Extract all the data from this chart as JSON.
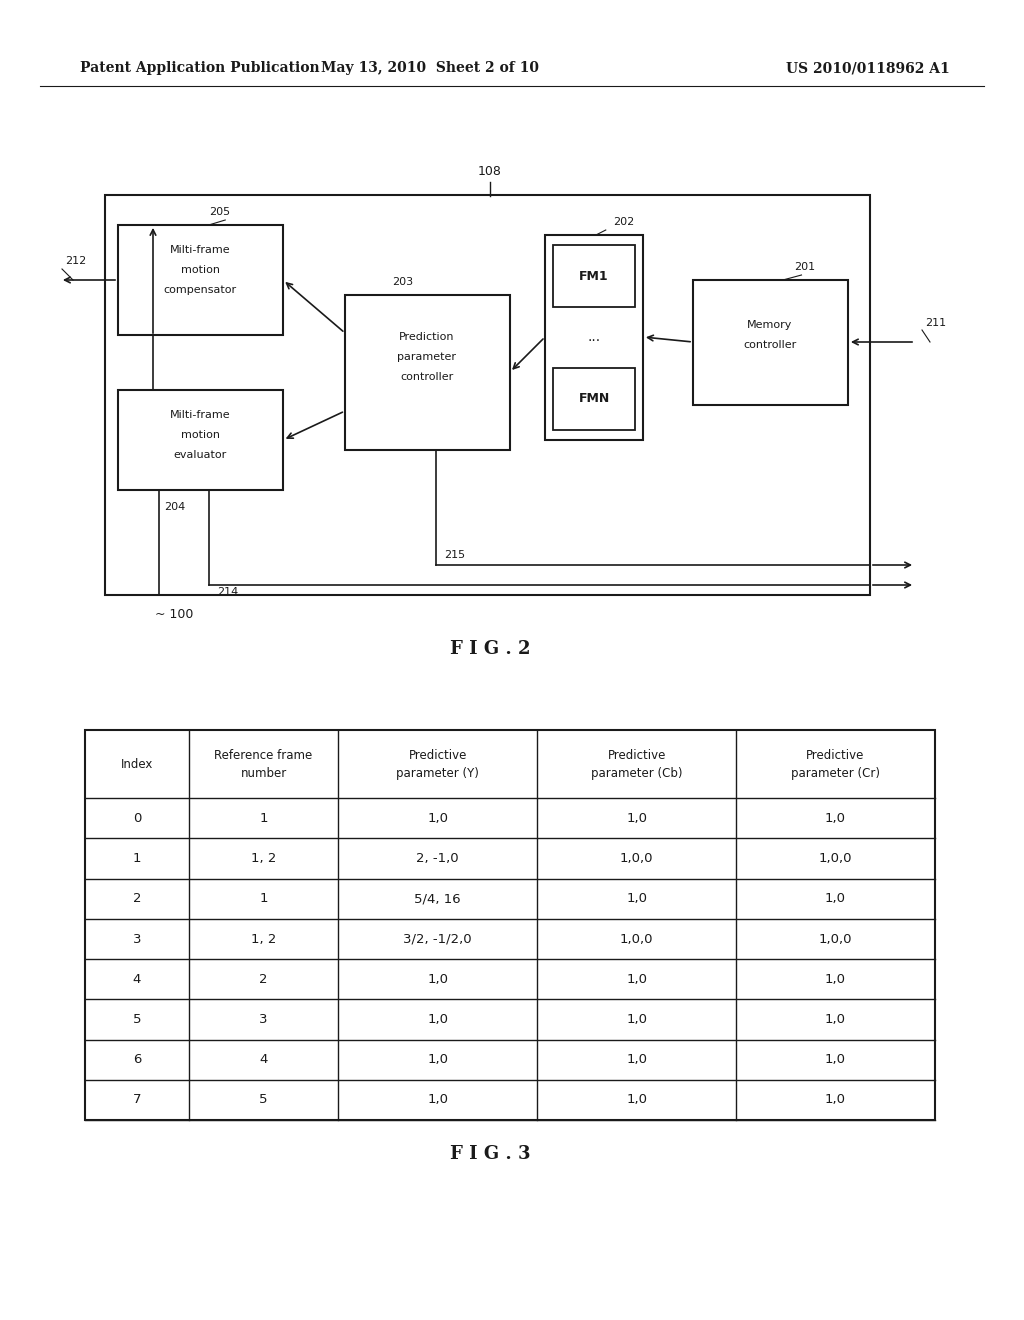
{
  "header_left": "Patent Application Publication",
  "header_mid": "May 13, 2010  Sheet 2 of 10",
  "header_right": "US 2010/0118962 A1",
  "fig2_label": "F I G . 2",
  "fig3_label": "F I G . 3",
  "bg_color": "#ffffff",
  "line_color": "#1a1a1a",
  "text_color": "#1a1a1a"
}
